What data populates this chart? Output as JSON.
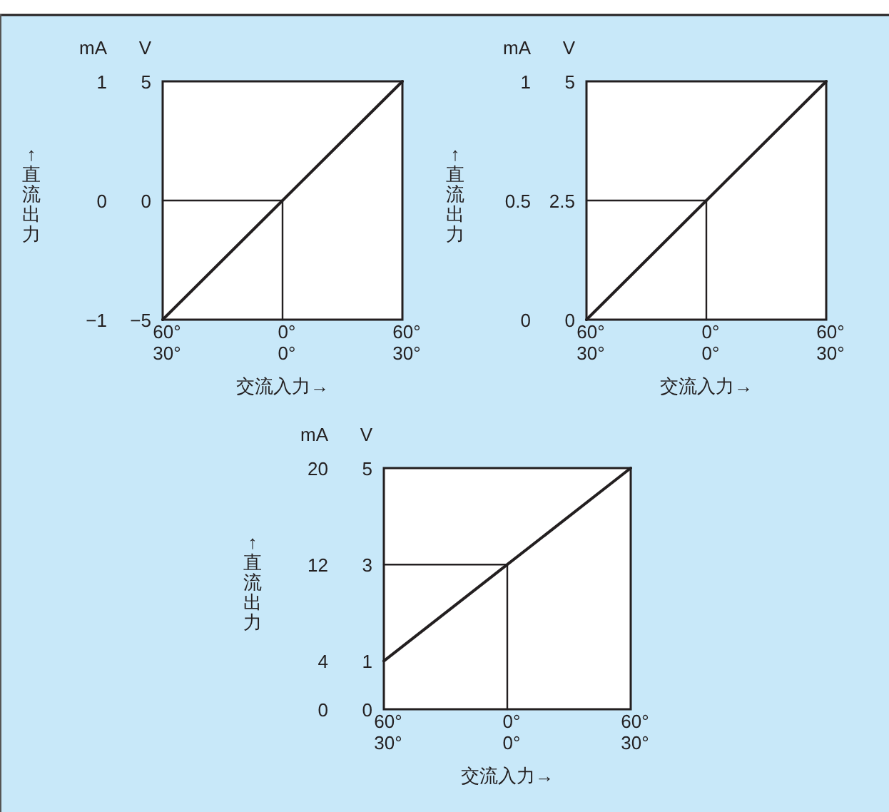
{
  "chart_data": [
    {
      "type": "line",
      "xlabel": "交流入力→",
      "ylabel": "mA",
      "y2label": "V",
      "annotations": [
        "↑直流出力"
      ],
      "categories": [
        "60°\n30°",
        "0°\n0°",
        "60°\n30°"
      ],
      "ylim": [
        -1,
        1
      ],
      "yticks": [
        {
          "value": -1,
          "label": "−1"
        },
        0,
        1
      ],
      "y2lim": [
        -5,
        5
      ],
      "y2ticks": [
        {
          "value": -5,
          "label": "−5"
        },
        0,
        5
      ],
      "series": [
        {
          "color": "#231f20",
          "values": [
            -1,
            0,
            1
          ]
        },
        {
          "color": "#231f20",
          "x": [
            "60°\n30°",
            "0°\n0°",
            "0°\n0°"
          ],
          "values": [
            0,
            0,
            -1
          ]
        }
      ]
    },
    {
      "type": "line",
      "xlabel": "交流入力→",
      "ylabel": "mA",
      "y2label": "V",
      "annotations": [
        "↑直流出力"
      ],
      "categories": [
        "60°\n30°",
        "0°\n0°",
        "60°\n30°"
      ],
      "ylim": [
        0,
        1
      ],
      "yticks": [
        0,
        0.5,
        1
      ],
      "y2lim": [
        0,
        5
      ],
      "y2ticks": [
        0,
        2.5,
        5
      ],
      "series": [
        {
          "color": "#231f20",
          "values": [
            0,
            0.5,
            1
          ]
        },
        {
          "color": "#231f20",
          "x": [
            "60°\n30°",
            "0°\n0°",
            "0°\n0°"
          ],
          "values": [
            0.5,
            0.5,
            0
          ]
        }
      ]
    },
    {
      "type": "line",
      "xlabel": "交流入力→",
      "ylabel": "mA",
      "y2label": "V",
      "annotations": [
        "↑直流出力"
      ],
      "categories": [
        "60°\n30°",
        "0°\n0°",
        "60°\n30°"
      ],
      "ylim": [
        0,
        20
      ],
      "yticks": [
        0,
        4,
        12,
        20
      ],
      "y2lim": [
        0,
        5
      ],
      "y2ticks": [
        0,
        1,
        3,
        5
      ],
      "series": [
        {
          "color": "#231f20",
          "values": [
            4,
            12,
            20
          ]
        },
        {
          "color": "#231f20",
          "x": [
            "60°\n30°",
            "0°\n0°",
            "0°\n0°"
          ],
          "values": [
            12,
            12,
            0
          ]
        }
      ]
    }
  ]
}
